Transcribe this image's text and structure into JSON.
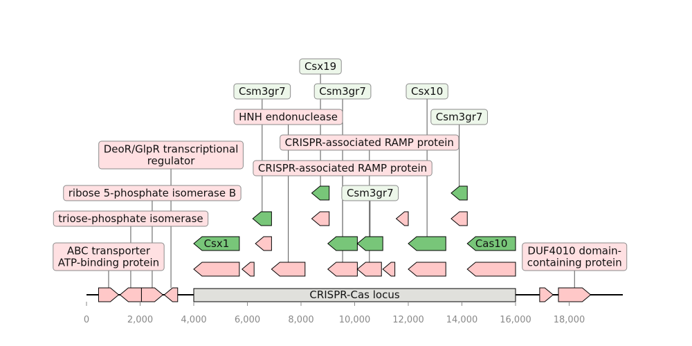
{
  "axis": {
    "min": 0,
    "max": 20000,
    "ticks": [
      {
        "value": 0,
        "label": "0"
      },
      {
        "value": 2000,
        "label": "2,000"
      },
      {
        "value": 4000,
        "label": "4,000"
      },
      {
        "value": 6000,
        "label": "6,000"
      },
      {
        "value": 8000,
        "label": "8,000"
      },
      {
        "value": 10000,
        "label": "10,000"
      },
      {
        "value": 12000,
        "label": "12,000"
      },
      {
        "value": 14000,
        "label": "14,000"
      },
      {
        "value": 16000,
        "label": "16,000"
      },
      {
        "value": 18000,
        "label": "18,000"
      }
    ]
  },
  "colors": {
    "pink_fill": "#ffc8c8",
    "green_fill": "#78c679",
    "region_fill": "#e0e0dc",
    "pink_label_bg": "#ffe0e2",
    "green_label_bg": "#edf7ea"
  },
  "region": {
    "label": "CRISPR-Cas locus",
    "start": 4000,
    "end": 16000
  },
  "features": [
    {
      "id": "f1",
      "start": 450,
      "end": 1200,
      "strand": 1,
      "color": "pink",
      "label": "ABC transporter\nATP-binding protein",
      "label_color": "pink"
    },
    {
      "id": "f2",
      "start": 1250,
      "end": 2050,
      "strand": -1,
      "color": "pink",
      "label": "triose-phosphate isomerase",
      "label_color": "pink"
    },
    {
      "id": "f3",
      "start": 2050,
      "end": 2850,
      "strand": 1,
      "color": "pink",
      "label": "ribose 5-phosphate isomerase B",
      "label_color": "pink"
    },
    {
      "id": "f4",
      "start": 2900,
      "end": 3400,
      "strand": -1,
      "color": "pink",
      "label": "DeoR/GlpR transcriptional\nregulator",
      "label_color": "pink"
    },
    {
      "id": "f5",
      "start": 4000,
      "end": 5700,
      "strand": -1,
      "color": "pink",
      "label": "",
      "label_color": ""
    },
    {
      "id": "f6",
      "start": 4000,
      "end": 5700,
      "strand": -1,
      "color": "green",
      "label": "Csx1",
      "label_color": "inside"
    },
    {
      "id": "f7",
      "start": 5800,
      "end": 6250,
      "strand": -1,
      "color": "pink",
      "label": "",
      "label_color": ""
    },
    {
      "id": "f8",
      "start": 6300,
      "end": 6900,
      "strand": -1,
      "color": "pink",
      "label": "",
      "label_color": ""
    },
    {
      "id": "f9",
      "start": 6200,
      "end": 6900,
      "strand": -1,
      "color": "green",
      "label": "Csm3gr7",
      "label_color": "green"
    },
    {
      "id": "f10",
      "start": 6900,
      "end": 8150,
      "strand": -1,
      "color": "pink",
      "label": "HNH endonuclease",
      "label_color": "pink"
    },
    {
      "id": "f11",
      "start": 8400,
      "end": 9050,
      "strand": -1,
      "color": "pink",
      "label": "",
      "label_color": ""
    },
    {
      "id": "f12",
      "start": 8400,
      "end": 9050,
      "strand": -1,
      "color": "green",
      "label": "Csx19",
      "label_color": "green"
    },
    {
      "id": "f13",
      "start": 9000,
      "end": 10100,
      "strand": -1,
      "color": "pink",
      "label": "CRISPR-associated RAMP protein",
      "label_color": "pink"
    },
    {
      "id": "f14",
      "start": 9000,
      "end": 10100,
      "strand": -1,
      "color": "green",
      "label": "Csm3gr7",
      "label_color": "green"
    },
    {
      "id": "f15",
      "start": 10100,
      "end": 11000,
      "strand": -1,
      "color": "pink",
      "label": "CRISPR-associated RAMP protein",
      "label_color": "pink"
    },
    {
      "id": "f16",
      "start": 10100,
      "end": 11050,
      "strand": -1,
      "color": "green",
      "label": "Csm3gr7",
      "label_color": "green"
    },
    {
      "id": "f17",
      "start": 11050,
      "end": 11500,
      "strand": -1,
      "color": "pink",
      "label": "",
      "label_color": ""
    },
    {
      "id": "f18",
      "start": 11550,
      "end": 12000,
      "strand": -1,
      "color": "pink",
      "label": "",
      "label_color": ""
    },
    {
      "id": "f19",
      "start": 12000,
      "end": 13400,
      "strand": -1,
      "color": "pink",
      "label": "",
      "label_color": ""
    },
    {
      "id": "f20",
      "start": 12000,
      "end": 13400,
      "strand": -1,
      "color": "green",
      "label": "Csx10",
      "label_color": "green"
    },
    {
      "id": "f21",
      "start": 13600,
      "end": 14200,
      "strand": -1,
      "color": "pink",
      "label": "",
      "label_color": ""
    },
    {
      "id": "f22",
      "start": 13600,
      "end": 14200,
      "strand": -1,
      "color": "green",
      "label": "Csm3gr7",
      "label_color": "green"
    },
    {
      "id": "f23",
      "start": 14200,
      "end": 16000,
      "strand": -1,
      "color": "pink",
      "label": "",
      "label_color": ""
    },
    {
      "id": "f24",
      "start": 14200,
      "end": 16000,
      "strand": -1,
      "color": "green",
      "label": "Cas10",
      "label_color": "inside"
    },
    {
      "id": "f25",
      "start": 16900,
      "end": 17400,
      "strand": 1,
      "color": "pink",
      "label": "",
      "label_color": ""
    },
    {
      "id": "f26",
      "start": 17600,
      "end": 18800,
      "strand": 1,
      "color": "pink",
      "label": "DUF4010 domain-\ncontaining protein",
      "label_color": "pink"
    }
  ]
}
